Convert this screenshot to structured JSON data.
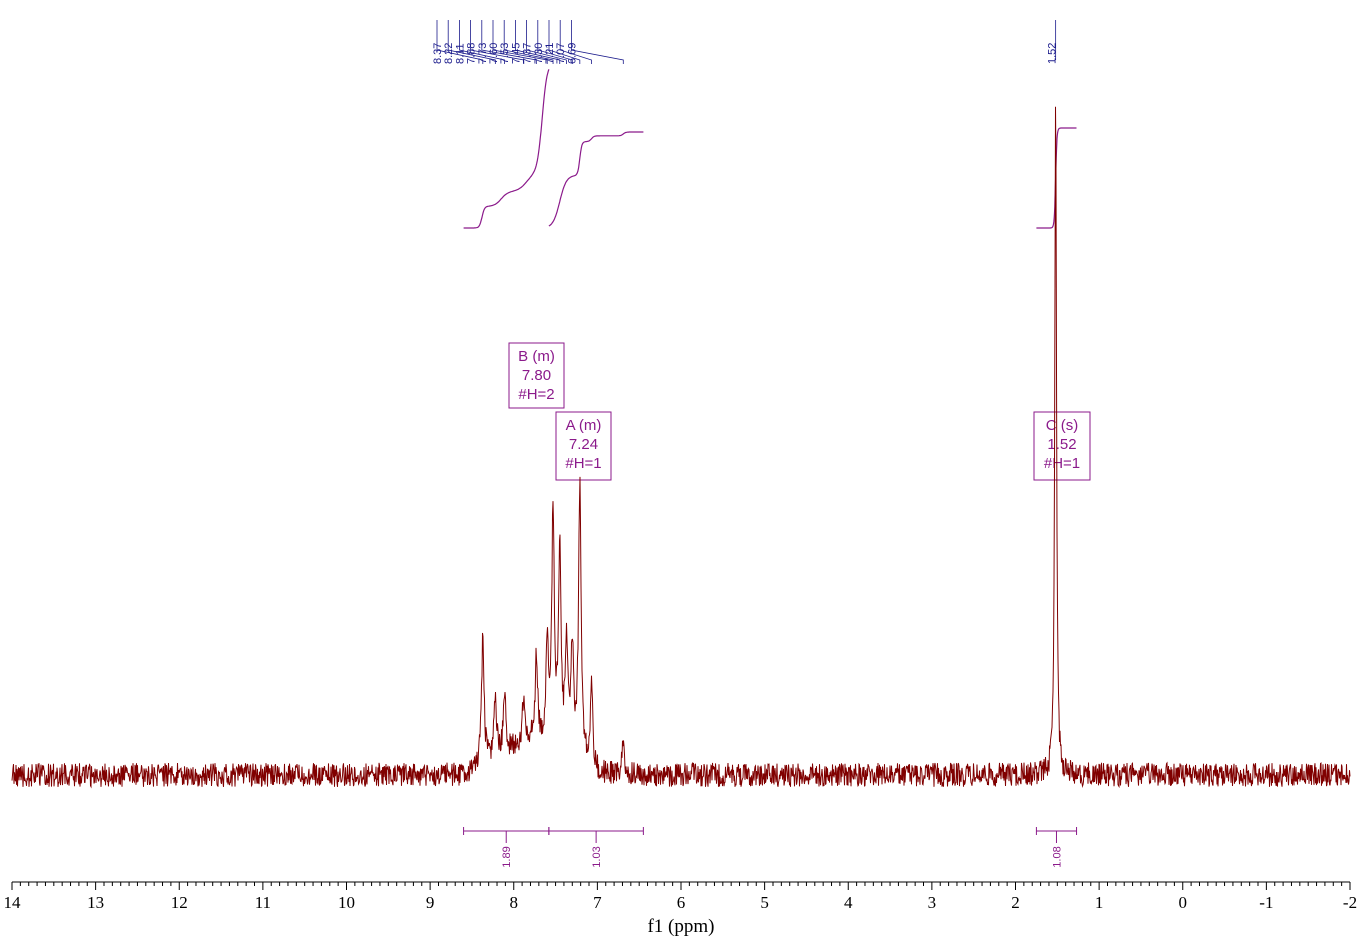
{
  "chart_data": {
    "type": "line",
    "title": "",
    "xlabel": "f1 (ppm)",
    "ylabel": "",
    "xlim": [
      14,
      -2
    ],
    "x_ticks": [
      "14",
      "13",
      "12",
      "11",
      "10",
      "9",
      "8",
      "7",
      "6",
      "5",
      "4",
      "3",
      "2",
      "1",
      "0",
      "-1",
      "-2"
    ],
    "colors": {
      "spectrum": "#800000",
      "peak_labels": "#1c1c8c",
      "integrals": "#8b1a8b",
      "axis": "#000000"
    },
    "peak_labels": [
      "8.37",
      "8.22",
      "8.11",
      "7.88",
      "7.73",
      "7.60",
      "7.53",
      "7.45",
      "7.37",
      "7.30",
      "7.21",
      "7.07",
      "6.69",
      "1.52"
    ],
    "peaks": [
      {
        "ppm": 8.37,
        "height": 0.19
      },
      {
        "ppm": 8.22,
        "height": 0.09
      },
      {
        "ppm": 8.11,
        "height": 0.09
      },
      {
        "ppm": 7.88,
        "height": 0.07
      },
      {
        "ppm": 7.73,
        "height": 0.12
      },
      {
        "ppm": 7.6,
        "height": 0.15
      },
      {
        "ppm": 7.53,
        "height": 0.34
      },
      {
        "ppm": 7.45,
        "height": 0.28
      },
      {
        "ppm": 7.37,
        "height": 0.16
      },
      {
        "ppm": 7.3,
        "height": 0.16
      },
      {
        "ppm": 7.21,
        "height": 0.4
      },
      {
        "ppm": 7.07,
        "height": 0.11
      },
      {
        "ppm": 6.69,
        "height": 0.05
      },
      {
        "ppm": 1.52,
        "height": 1.0
      }
    ],
    "multiplets": [
      {
        "name": "B (m)",
        "shift": "7.80",
        "nh": "#H=2"
      },
      {
        "name": "A (m)",
        "shift": "7.24",
        "nh": "#H=1"
      },
      {
        "name": "C (s)",
        "shift": "1.52",
        "nh": "#H=1"
      }
    ],
    "integrals": [
      {
        "range": [
          8.6,
          7.58
        ],
        "value": "1.89"
      },
      {
        "range": [
          7.58,
          6.45
        ],
        "value": "1.03"
      },
      {
        "range": [
          1.75,
          1.27
        ],
        "value": "1.08"
      }
    ]
  }
}
